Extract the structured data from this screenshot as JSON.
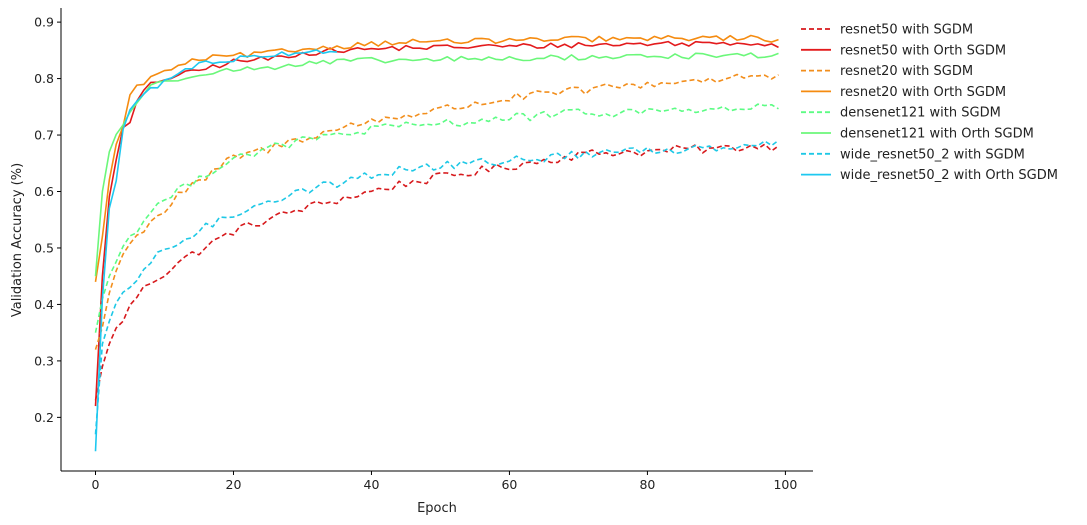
{
  "chart_data": {
    "type": "line",
    "title": "",
    "xlabel": "Epoch",
    "ylabel": "Validation Accuracy (%)",
    "xlim": [
      -5,
      104
    ],
    "ylim": [
      0.105,
      0.925
    ],
    "xticks": [
      0,
      20,
      40,
      60,
      80,
      100
    ],
    "yticks": [
      0.2,
      0.3,
      0.4,
      0.5,
      0.6,
      0.7,
      0.8,
      0.9
    ],
    "grid": false,
    "legend_position": "upper-right-outside",
    "x_anchors": [
      0,
      1,
      2,
      3,
      4,
      5,
      6,
      8,
      10,
      12,
      15,
      20,
      25,
      30,
      35,
      40,
      45,
      50,
      55,
      60,
      65,
      70,
      75,
      80,
      85,
      90,
      95,
      99
    ],
    "series": [
      {
        "name": "resnet50 with SGDM",
        "color": "#d7191c",
        "dashed": true,
        "anchor_values": [
          0.23,
          0.29,
          0.33,
          0.355,
          0.375,
          0.395,
          0.415,
          0.44,
          0.455,
          0.475,
          0.495,
          0.53,
          0.55,
          0.57,
          0.585,
          0.6,
          0.615,
          0.625,
          0.635,
          0.645,
          0.655,
          0.665,
          0.67,
          0.67,
          0.675,
          0.675,
          0.68,
          0.68
        ]
      },
      {
        "name": "resnet50 with Orth SGDM",
        "color": "#e31a1c",
        "dashed": false,
        "anchor_values": [
          0.22,
          0.45,
          0.59,
          0.66,
          0.71,
          0.72,
          0.76,
          0.79,
          0.8,
          0.805,
          0.815,
          0.83,
          0.835,
          0.845,
          0.85,
          0.852,
          0.855,
          0.855,
          0.857,
          0.857,
          0.858,
          0.86,
          0.86,
          0.862,
          0.862,
          0.863,
          0.864,
          0.858
        ]
      },
      {
        "name": "resnet20 with SGDM",
        "color": "#f28e1c",
        "dashed": true,
        "anchor_values": [
          0.32,
          0.36,
          0.42,
          0.46,
          0.49,
          0.505,
          0.52,
          0.55,
          0.565,
          0.595,
          0.615,
          0.66,
          0.675,
          0.695,
          0.71,
          0.725,
          0.735,
          0.745,
          0.755,
          0.765,
          0.772,
          0.778,
          0.785,
          0.79,
          0.795,
          0.8,
          0.805,
          0.8
        ]
      },
      {
        "name": "resnet20 with Orth SGDM",
        "color": "#f58b10",
        "dashed": false,
        "anchor_values": [
          0.44,
          0.52,
          0.62,
          0.68,
          0.72,
          0.77,
          0.785,
          0.8,
          0.815,
          0.82,
          0.835,
          0.84,
          0.845,
          0.852,
          0.857,
          0.862,
          0.865,
          0.866,
          0.866,
          0.868,
          0.868,
          0.87,
          0.87,
          0.87,
          0.872,
          0.872,
          0.872,
          0.868
        ]
      },
      {
        "name": "densenet121 with SGDM",
        "color": "#5cfc84",
        "dashed": true,
        "anchor_values": [
          0.35,
          0.41,
          0.45,
          0.48,
          0.5,
          0.52,
          0.535,
          0.565,
          0.585,
          0.6,
          0.625,
          0.66,
          0.675,
          0.69,
          0.7,
          0.71,
          0.715,
          0.72,
          0.725,
          0.73,
          0.735,
          0.738,
          0.74,
          0.742,
          0.745,
          0.745,
          0.748,
          0.75
        ]
      },
      {
        "name": "densenet121 with Orth SGDM",
        "color": "#6bf77a",
        "dashed": false,
        "anchor_values": [
          0.45,
          0.6,
          0.67,
          0.7,
          0.72,
          0.74,
          0.76,
          0.785,
          0.795,
          0.8,
          0.81,
          0.815,
          0.82,
          0.825,
          0.83,
          0.832,
          0.832,
          0.834,
          0.835,
          0.835,
          0.836,
          0.838,
          0.838,
          0.84,
          0.84,
          0.84,
          0.842,
          0.84
        ]
      },
      {
        "name": "wide_resnet50_2 with SGDM",
        "color": "#1ec8e6",
        "dashed": true,
        "anchor_values": [
          0.17,
          0.33,
          0.37,
          0.395,
          0.415,
          0.43,
          0.445,
          0.475,
          0.495,
          0.51,
          0.53,
          0.56,
          0.585,
          0.6,
          0.615,
          0.63,
          0.64,
          0.645,
          0.65,
          0.655,
          0.66,
          0.665,
          0.67,
          0.672,
          0.675,
          0.68,
          0.685,
          0.688
        ]
      },
      {
        "name": "wide_resnet50_2 with Orth SGDM",
        "color": "#1ec8f0",
        "dashed": false,
        "anchor_values": [
          0.14,
          0.41,
          0.57,
          0.62,
          0.71,
          0.745,
          0.76,
          0.78,
          0.795,
          0.81,
          0.825,
          0.835,
          0.842,
          0.848,
          0.85,
          null,
          null,
          null,
          null,
          null,
          null,
          null,
          null,
          null,
          null,
          null,
          null,
          null
        ]
      }
    ]
  }
}
